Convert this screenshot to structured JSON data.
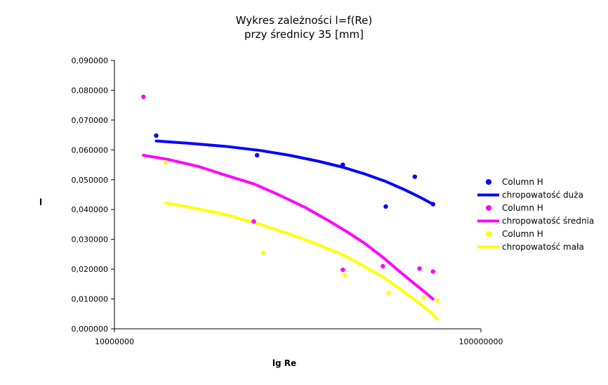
{
  "chart_data": {
    "type": "scatter",
    "title": "Wykres zależności l=f(Re)",
    "subtitle": "przy średnicy 35 [mm]",
    "xlabel": "lg Re",
    "ylabel": "l",
    "xscale": "log",
    "xlim": [
      10000000,
      100000000
    ],
    "ylim": [
      0,
      0.09
    ],
    "x_ticks": [
      "10000000",
      "100000000"
    ],
    "y_ticks": [
      "0,000000",
      "0,010000",
      "0,020000",
      "0,030000",
      "0,040000",
      "0,050000",
      "0,060000",
      "0,070000",
      "0,080000",
      "0,090000"
    ],
    "y_tick_values": [
      0,
      0.01,
      0.02,
      0.03,
      0.04,
      0.05,
      0.06,
      0.07,
      0.08,
      0.09
    ],
    "grid": false,
    "legend_position": "right",
    "legend": [
      {
        "label": "Column H",
        "kind": "marker",
        "color": "#0000ff"
      },
      {
        "label": "chropowatość duża",
        "kind": "line",
        "color": "#0000ff"
      },
      {
        "label": "Column H",
        "kind": "marker",
        "color": "#ff00ff"
      },
      {
        "label": "chropowatość średnia",
        "kind": "line",
        "color": "#ff00ff"
      },
      {
        "label": "Column H",
        "kind": "marker",
        "color": "#ffff00"
      },
      {
        "label": "chropowatość mała",
        "kind": "line",
        "color": "#ffff00"
      }
    ],
    "series": [
      {
        "name": "Column H",
        "kind": "scatter",
        "color": "#0000ff",
        "x": [
          13000000,
          24500000,
          42000000,
          55000000,
          66000000,
          74000000
        ],
        "y": [
          0.0648,
          0.0582,
          0.055,
          0.041,
          0.051,
          0.0418
        ]
      },
      {
        "name": "chropowatość duża",
        "kind": "line",
        "color": "#0000ff",
        "x": [
          13000000,
          16000000,
          20000000,
          25000000,
          30000000,
          36000000,
          42000000,
          48000000,
          55000000,
          62000000,
          68000000,
          74000000
        ],
        "y": [
          0.063,
          0.0622,
          0.0612,
          0.0598,
          0.0582,
          0.0562,
          0.0542,
          0.052,
          0.0494,
          0.0466,
          0.0442,
          0.0418
        ]
      },
      {
        "name": "Column H",
        "kind": "scatter",
        "color": "#ff00ff",
        "x": [
          12000000,
          24000000,
          42000000,
          54000000,
          68000000,
          74000000
        ],
        "y": [
          0.0778,
          0.036,
          0.0198,
          0.021,
          0.0202,
          0.0192
        ]
      },
      {
        "name": "chropowatość średnia",
        "kind": "line",
        "color": "#ff00ff",
        "x": [
          12000000,
          14000000,
          17000000,
          20000000,
          24000000,
          28000000,
          33000000,
          38000000,
          43000000,
          48000000,
          54000000,
          60000000,
          66000000,
          70000000,
          74000000
        ],
        "y": [
          0.0582,
          0.0568,
          0.0544,
          0.0516,
          0.0486,
          0.045,
          0.0408,
          0.0366,
          0.0326,
          0.0288,
          0.024,
          0.0192,
          0.015,
          0.0125,
          0.01
        ]
      },
      {
        "name": "Column H",
        "kind": "scatter",
        "color": "#ffff00",
        "x": [
          13800000,
          25500000,
          42500000,
          56000000,
          70000000,
          76000000
        ],
        "y": [
          0.0558,
          0.0255,
          0.018,
          0.012,
          0.0105,
          0.0095
        ]
      },
      {
        "name": "chropowatość mała",
        "kind": "line",
        "color": "#ffff00",
        "x": [
          13800000,
          16000000,
          20000000,
          25000000,
          30000000,
          36000000,
          42000000,
          48000000,
          55000000,
          62000000,
          68000000,
          73000000,
          76000000
        ],
        "y": [
          0.0422,
          0.0408,
          0.0384,
          0.035,
          0.0318,
          0.0282,
          0.0248,
          0.021,
          0.0168,
          0.0122,
          0.0085,
          0.0055,
          0.0032
        ]
      }
    ]
  }
}
